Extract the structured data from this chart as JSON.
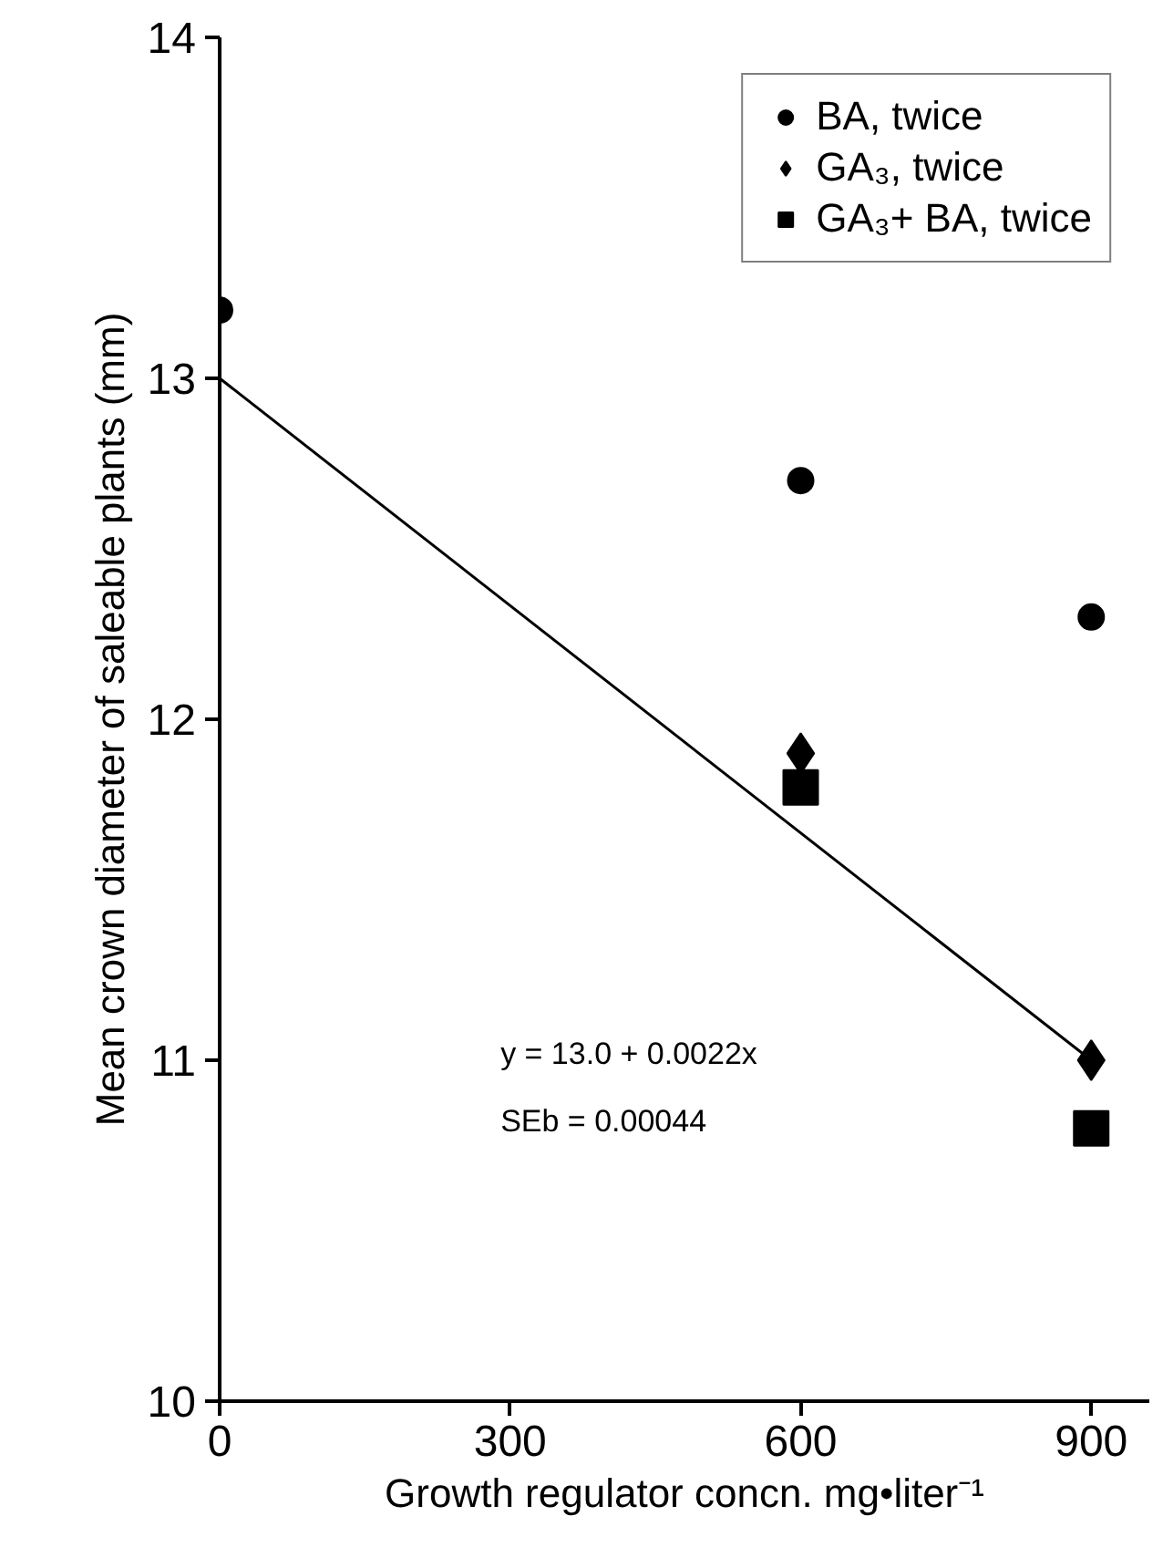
{
  "chart_data": {
    "type": "scatter",
    "xlabel": "Growth regulator concn. mg•liter⁻¹",
    "ylabel": "Mean crown diameter of saleable plants (mm)",
    "xlim": [
      0,
      960
    ],
    "ylim": [
      10,
      14
    ],
    "xticks": [
      0,
      300,
      600,
      900
    ],
    "yticks": [
      10,
      11,
      12,
      13,
      14
    ],
    "grid": false,
    "legend": "top right",
    "series": [
      {
        "name": "BA, twice",
        "color": "#000000",
        "marker": "circle",
        "x": [
          0,
          600,
          900
        ],
        "values": [
          13.2,
          12.7,
          12.3
        ]
      },
      {
        "name": "GA₃, twice",
        "color": "#000000",
        "marker": "diamond",
        "x": [
          600,
          900
        ],
        "values": [
          11.9,
          11.0
        ]
      },
      {
        "name": "GA₃+ BA, twice",
        "color": "#000000",
        "marker": "square",
        "x": [
          600,
          900
        ],
        "values": [
          11.8,
          10.8
        ]
      },
      {
        "type": "line",
        "color": "#000000",
        "marker": "none",
        "x": [
          0,
          900
        ],
        "values": [
          13.0,
          11.0
        ]
      }
    ],
    "annotations": [
      "y = 13.0 + 0.0022x",
      "SEb = 0.00044"
    ]
  }
}
